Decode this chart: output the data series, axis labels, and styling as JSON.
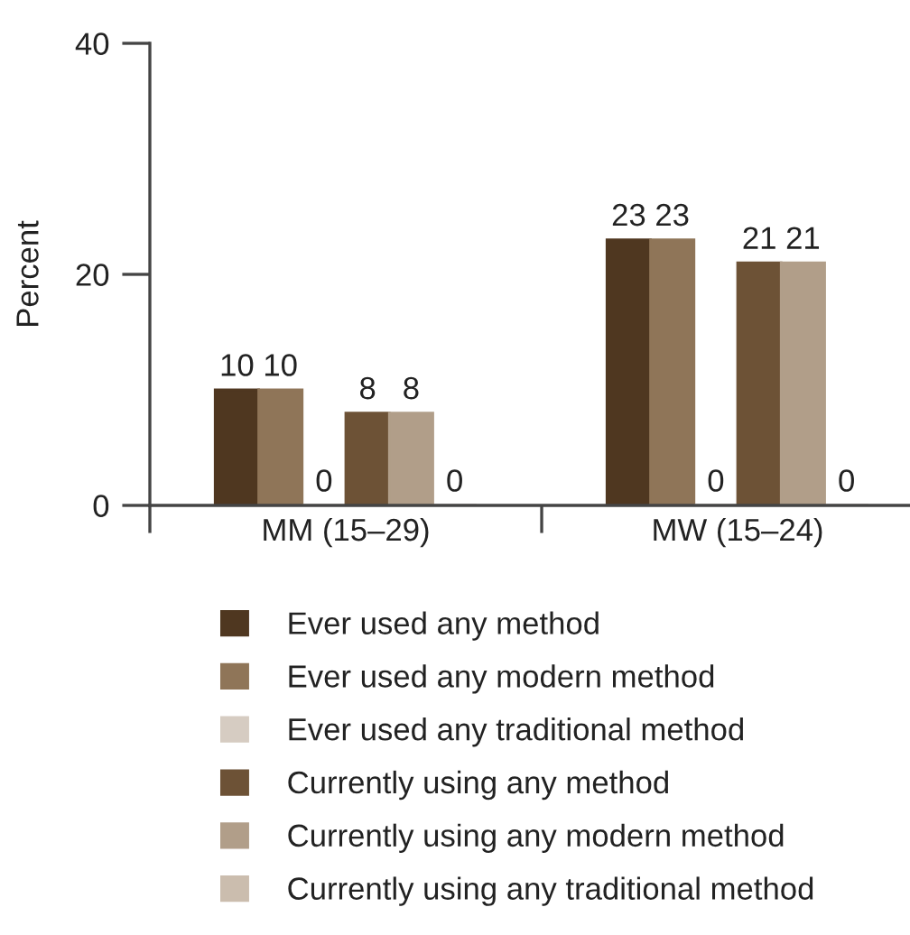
{
  "chart_data": {
    "type": "bar",
    "ylabel": "Percent",
    "categories": [
      "MM (15–29)",
      "MW (15–24)"
    ],
    "series": [
      {
        "name": "Ever used any method",
        "color": "#4f3720",
        "values": [
          10,
          23
        ]
      },
      {
        "name": "Ever used any modern method",
        "color": "#8f7558",
        "values": [
          10,
          23
        ]
      },
      {
        "name": "Ever used any traditional method",
        "color": "#d6ccc2",
        "values": [
          0,
          0
        ]
      },
      {
        "name": "Currently using any method",
        "color": "#6d5236",
        "values": [
          8,
          21
        ]
      },
      {
        "name": "Currently using any modern method",
        "color": "#b19e89",
        "values": [
          8,
          21
        ]
      },
      {
        "name": "Currently using any traditional method",
        "color": "#cbbdae",
        "values": [
          0,
          0
        ]
      }
    ],
    "ylim": [
      0,
      40
    ],
    "yticks": [
      0,
      20,
      40
    ],
    "grid": false,
    "data_labels": true,
    "legend": "bottom"
  }
}
